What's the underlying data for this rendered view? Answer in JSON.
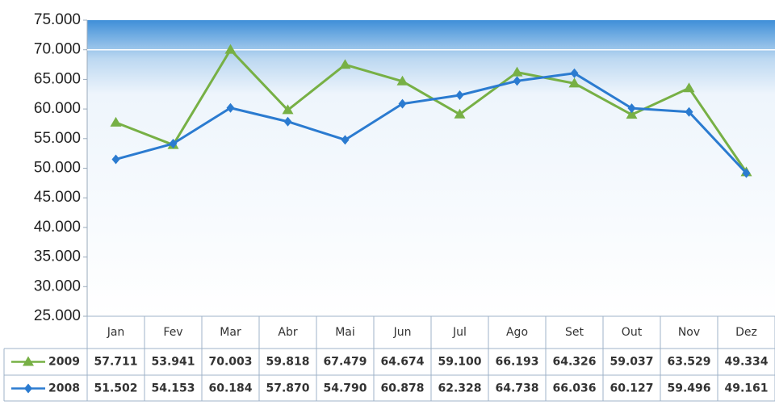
{
  "chart_data": {
    "type": "line",
    "categories": [
      "Jan",
      "Fev",
      "Mar",
      "Abr",
      "Mai",
      "Jun",
      "Jul",
      "Ago",
      "Set",
      "Out",
      "Nov",
      "Dez"
    ],
    "series": [
      {
        "name": "2009",
        "color": "#77b045",
        "marker": "triangle",
        "values": [
          57711,
          53941,
          70003,
          59818,
          67479,
          64674,
          59100,
          66193,
          64326,
          59037,
          63529,
          49334
        ],
        "value_labels": [
          "57.711",
          "53.941",
          "70.003",
          "59.818",
          "67.479",
          "64.674",
          "59.100",
          "66.193",
          "64.326",
          "59.037",
          "63.529",
          "49.334"
        ]
      },
      {
        "name": "2008",
        "color": "#2b7bd0",
        "marker": "diamond",
        "values": [
          51502,
          54153,
          60184,
          57870,
          54790,
          60878,
          62328,
          64738,
          66036,
          60127,
          59496,
          49161
        ],
        "value_labels": [
          "51.502",
          "54.153",
          "60.184",
          "57.870",
          "54.790",
          "60.878",
          "62.328",
          "64.738",
          "66.036",
          "60.127",
          "59.496",
          "49.161"
        ]
      }
    ],
    "ylim": [
      25000,
      75000
    ],
    "yticks": [
      {
        "value": 25000,
        "label": "25.000"
      },
      {
        "value": 30000,
        "label": "30.000"
      },
      {
        "value": 35000,
        "label": "35.000"
      },
      {
        "value": 40000,
        "label": "40.000"
      },
      {
        "value": 45000,
        "label": "45.000"
      },
      {
        "value": 50000,
        "label": "50.000"
      },
      {
        "value": 55000,
        "label": "55.000"
      },
      {
        "value": 60000,
        "label": "60.000"
      },
      {
        "value": 65000,
        "label": "65.000"
      },
      {
        "value": 70000,
        "label": "70.000"
      },
      {
        "value": 75000,
        "label": "75.000"
      }
    ]
  }
}
